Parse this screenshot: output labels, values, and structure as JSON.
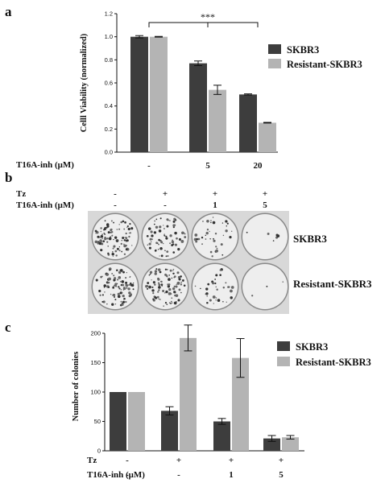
{
  "panels": {
    "a": "a",
    "b": "b",
    "c": "c"
  },
  "legend": {
    "s1": "SKBR3",
    "s2": "Resistant-SKBR3"
  },
  "colors": {
    "s1": "#3d3d3d",
    "s2": "#b4b4b4"
  },
  "chart_data": [
    {
      "type": "bar",
      "panel": "a",
      "ylabel": "Celll Viability (normalized)",
      "ylim": [
        0,
        1.2
      ],
      "yticks": [
        "0.0",
        "0.2",
        "0.4",
        "0.6",
        "0.8",
        "1.0",
        "1.2"
      ],
      "row_label": "T16A-inh (μM)",
      "categories": [
        "-",
        "5",
        "20"
      ],
      "series": [
        {
          "name": "SKBR3",
          "values": [
            1.0,
            0.77,
            0.5
          ],
          "errors": [
            0.01,
            0.02,
            0.005
          ]
        },
        {
          "name": "Resistant-SKBR3",
          "values": [
            1.0,
            0.54,
            0.255
          ],
          "errors": [
            0.003,
            0.04,
            0.003
          ]
        }
      ],
      "significance": "***"
    },
    {
      "type": "bar",
      "panel": "c",
      "ylabel": "Number of colonies",
      "ylim": [
        0,
        200
      ],
      "yticks": [
        "0",
        "50",
        "100",
        "150",
        "200"
      ],
      "rows": [
        {
          "label": "Tz",
          "values": [
            "-",
            "+",
            "+",
            "+"
          ]
        },
        {
          "label": "T16A-inh (μM)",
          "values": [
            "-",
            "-",
            "1",
            "5"
          ]
        }
      ],
      "series": [
        {
          "name": "SKBR3",
          "values": [
            100,
            68,
            50,
            21
          ],
          "errors": [
            0,
            7,
            5,
            5
          ]
        },
        {
          "name": "Resistant-SKBR3",
          "values": [
            100,
            192,
            158,
            23
          ],
          "errors": [
            0,
            22,
            33,
            3
          ]
        }
      ]
    }
  ],
  "plates": {
    "rows": [
      {
        "label": "Tz",
        "values": [
          "-",
          "+",
          "+",
          "+"
        ]
      },
      {
        "label": "T16A-inh (μM)",
        "values": [
          "-",
          "-",
          "1",
          "5"
        ]
      }
    ],
    "row_labels": [
      "SKBR3",
      "Resistant-SKBR3"
    ],
    "densities": [
      [
        0.9,
        0.65,
        0.35,
        0.05
      ],
      [
        0.85,
        0.9,
        0.3,
        0.03
      ]
    ]
  }
}
